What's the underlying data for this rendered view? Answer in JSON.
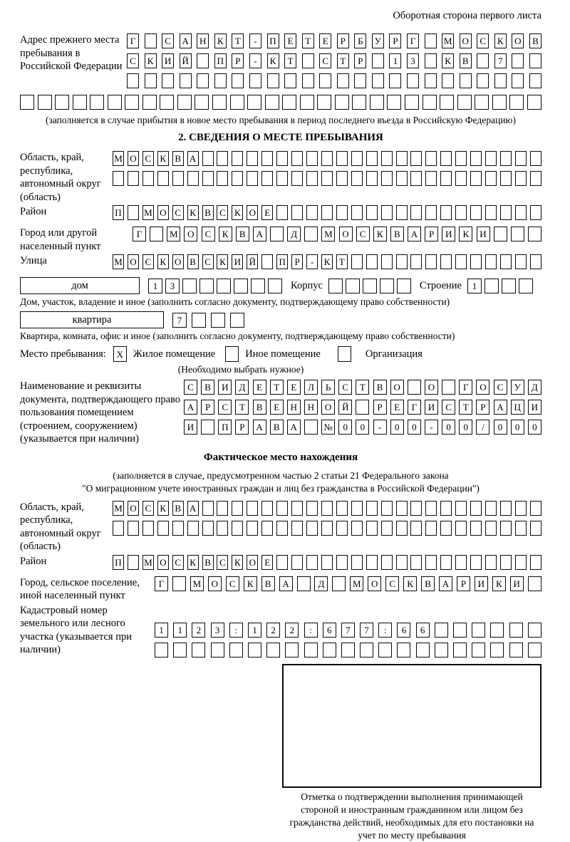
{
  "page": {
    "header_note": "Оборотная сторона первого листа"
  },
  "previous_address": {
    "label": "Адрес прежнего места пребывания в Российской Федерации",
    "row1": {
      "text": "Г САНКТ-ПЕТЕРБУРГ МОСКОВ",
      "len": 24
    },
    "row2": {
      "text": "СКИЙ ПР-КТ СТР 13 КВ 7",
      "len": 24
    },
    "row3": {
      "text": "",
      "len": 24
    },
    "row4": {
      "text": "",
      "len": 30
    },
    "note": "(заполняется в случае прибытия в новое место пребывания в период последнего въезда в Российскую Федерацию)"
  },
  "section2": {
    "title": "2. СВЕДЕНИЯ О МЕСТЕ ПРЕБЫВАНИЯ",
    "region": {
      "label": "Область, край, республика, автономный округ (область)",
      "row1": {
        "text": "МОСКВА",
        "len": 29
      },
      "row2": {
        "text": "",
        "len": 29
      }
    },
    "district": {
      "label": "Район",
      "row": {
        "text": "П МОСКВСКОЕ",
        "len": 29
      }
    },
    "city": {
      "label": "Город или другой населенный пункт",
      "row": {
        "text": "Г МОСКВА Д МОСКВАРИКИ",
        "len": 24
      }
    },
    "street": {
      "label": "Улица",
      "row": {
        "text": "МОСКОВСКИЙ ПР-КТ",
        "len": 29
      }
    },
    "house": {
      "box_label": "дом",
      "cells": {
        "text": "13",
        "len": 8
      },
      "korpus_label": "Корпус",
      "korpus_cells": {
        "text": "",
        "len": 5
      },
      "stroenie_label": "Строение",
      "stroenie_cells": {
        "text": "1",
        "len": 4
      },
      "caption": "Дом, участок, владение и иное (заполнить согласно документу, подтверждающему право собственности)"
    },
    "apartment": {
      "box_label": "квартира",
      "cells": {
        "text": "7",
        "len": 4
      },
      "caption": "Квартира, комната, офис и иное (заполнить согласно документу, подтверждающему право собственности)"
    },
    "stay": {
      "label": "Место пребывания:",
      "options": [
        {
          "mark": "X",
          "label": "Жилое помещение"
        },
        {
          "mark": "",
          "label": "Иное помещение"
        },
        {
          "mark": "",
          "label": "Организация"
        }
      ],
      "note": "(Необходимо выбрать нужное)"
    },
    "document": {
      "label": "Наименование и реквизиты документа, подтверждающего право пользования помещением (строением, сооружением) (указывается при наличии)",
      "row1": {
        "text": "СВИДЕТЕЛЬСТВО О ГОСУД",
        "len": 21
      },
      "row2": {
        "text": "АРСТВЕННОЙ РЕГИСТРАЦИ",
        "len": 21
      },
      "row3": {
        "text": "И ПРАВА №00-00-00/000",
        "len": 21
      }
    }
  },
  "actual_location": {
    "title": "Фактическое место нахождения",
    "note_line1": "(заполняется в случае, предусмотренном частью 2 статьи 21 Федерального закона",
    "note_line2": "\"О миграционном учете иностранных граждан и лиц без гражданства в Российской Федерации\")",
    "region": {
      "label": "Область, край, республика, автономный округ (область)",
      "row1": {
        "text": "МОСКВА",
        "len": 29
      },
      "row2": {
        "text": "",
        "len": 29
      }
    },
    "district": {
      "label": "Район",
      "row": {
        "text": "П МОСКВСКОЕ",
        "len": 29
      }
    },
    "city": {
      "label": "Город, сельское поселение, иной населенный пункт",
      "row": {
        "text": "Г МОСКВА Д МОСКВАРИКИ",
        "len": 22
      }
    },
    "cadastre": {
      "label": "Кадастровый номер земельного или лесного участка (указывается при наличии)",
      "row1": {
        "text": "1123:122:677:66",
        "len": 21
      },
      "row2": {
        "text": "",
        "len": 21
      }
    }
  },
  "stamp": {
    "caption": "Отметка о подтверждении выполнения принимающей стороной и иностранным гражданином или лицом без гражданства действий, необходимых для его постановки на учет по месту пребывания"
  }
}
